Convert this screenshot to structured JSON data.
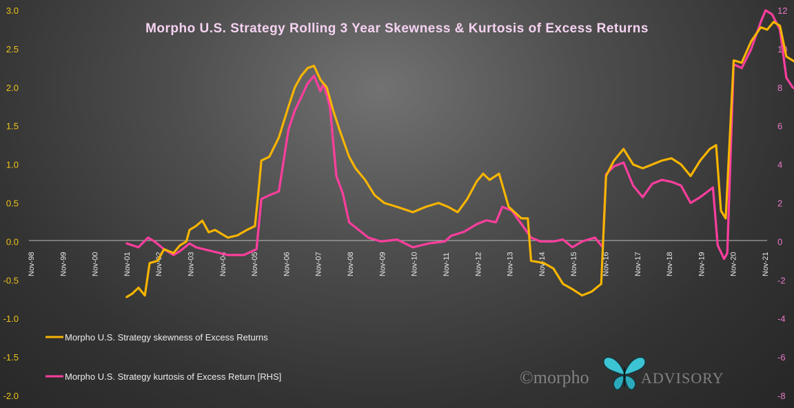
{
  "chart_data": {
    "type": "line",
    "title": "Morpho  U.S. Strategy  Rolling  3 Year  Skewness  &  Kurtosis  of  Excess  Returns",
    "x_ticks": [
      "Nov-98",
      "Nov-99",
      "Nov-00",
      "Nov-01",
      "Nov-02",
      "Nov-03",
      "Nov-04",
      "Nov-05",
      "Nov-06",
      "Nov-07",
      "Nov-08",
      "Nov-09",
      "Nov-10",
      "Nov-11",
      "Nov-12",
      "Nov-13",
      "Nov-14",
      "Nov-15",
      "Nov-16",
      "Nov-17",
      "Nov-18",
      "Nov-19",
      "Nov-20",
      "Nov-21"
    ],
    "x_range": [
      "Nov-98",
      "Nov-21"
    ],
    "y_left": {
      "range": [
        -2.0,
        3.0
      ],
      "ticks": [
        "-2.0",
        "-1.5",
        "-1.0",
        "-0.5",
        "0.0",
        "0.5",
        "1.0",
        "1.5",
        "2.0",
        "2.5",
        "3.0"
      ],
      "color": "#f0c419"
    },
    "y_right": {
      "range": [
        -8,
        12
      ],
      "ticks": [
        "-8",
        "-6",
        "-4",
        "-2",
        "0",
        "2",
        "4",
        "6",
        "8",
        "10",
        "12"
      ],
      "color": "#e879c8"
    },
    "grid": false,
    "legend_position": "bottom-left",
    "series": [
      {
        "name": "Morpho U.S. Strategy skewness of Excess Returns",
        "axis": "left",
        "color": "#f7b500",
        "points": [
          [
            2001.83,
            -0.72
          ],
          [
            2002.0,
            -0.68
          ],
          [
            2002.2,
            -0.6
          ],
          [
            2002.4,
            -0.7
          ],
          [
            2002.55,
            -0.28
          ],
          [
            2002.8,
            -0.25
          ],
          [
            2003.0,
            -0.1
          ],
          [
            2003.3,
            -0.15
          ],
          [
            2003.5,
            -0.05
          ],
          [
            2003.7,
            0.0
          ],
          [
            2003.8,
            0.15
          ],
          [
            2004.0,
            0.2
          ],
          [
            2004.2,
            0.27
          ],
          [
            2004.4,
            0.12
          ],
          [
            2004.6,
            0.15
          ],
          [
            2004.8,
            0.1
          ],
          [
            2005.0,
            0.05
          ],
          [
            2005.3,
            0.08
          ],
          [
            2005.6,
            0.15
          ],
          [
            2005.85,
            0.2
          ],
          [
            2005.95,
            0.6
          ],
          [
            2006.05,
            1.05
          ],
          [
            2006.3,
            1.1
          ],
          [
            2006.6,
            1.35
          ],
          [
            2006.9,
            1.75
          ],
          [
            2007.1,
            2.0
          ],
          [
            2007.3,
            2.15
          ],
          [
            2007.5,
            2.25
          ],
          [
            2007.7,
            2.28
          ],
          [
            2007.9,
            2.1
          ],
          [
            2008.1,
            2.0
          ],
          [
            2008.3,
            1.7
          ],
          [
            2008.5,
            1.45
          ],
          [
            2008.8,
            1.1
          ],
          [
            2009.0,
            0.95
          ],
          [
            2009.3,
            0.8
          ],
          [
            2009.6,
            0.6
          ],
          [
            2009.9,
            0.5
          ],
          [
            2010.3,
            0.45
          ],
          [
            2010.8,
            0.38
          ],
          [
            2011.2,
            0.45
          ],
          [
            2011.6,
            0.5
          ],
          [
            2011.9,
            0.45
          ],
          [
            2012.2,
            0.38
          ],
          [
            2012.5,
            0.55
          ],
          [
            2012.8,
            0.78
          ],
          [
            2013.0,
            0.88
          ],
          [
            2013.2,
            0.8
          ],
          [
            2013.5,
            0.88
          ],
          [
            2013.8,
            0.45
          ],
          [
            2014.2,
            0.3
          ],
          [
            2014.4,
            0.3
          ],
          [
            2014.5,
            -0.25
          ],
          [
            2014.9,
            -0.28
          ],
          [
            2015.2,
            -0.35
          ],
          [
            2015.5,
            -0.55
          ],
          [
            2015.8,
            -0.62
          ],
          [
            2016.1,
            -0.7
          ],
          [
            2016.4,
            -0.65
          ],
          [
            2016.7,
            -0.55
          ],
          [
            2016.85,
            0.85
          ],
          [
            2017.1,
            1.05
          ],
          [
            2017.4,
            1.2
          ],
          [
            2017.7,
            1.0
          ],
          [
            2018.0,
            0.95
          ],
          [
            2018.3,
            1.0
          ],
          [
            2018.6,
            1.05
          ],
          [
            2018.9,
            1.08
          ],
          [
            2019.2,
            1.0
          ],
          [
            2019.5,
            0.85
          ],
          [
            2019.8,
            1.05
          ],
          [
            2020.1,
            1.2
          ],
          [
            2020.3,
            1.25
          ],
          [
            2020.45,
            0.4
          ],
          [
            2020.6,
            0.3
          ],
          [
            2020.85,
            2.35
          ],
          [
            2021.1,
            2.32
          ],
          [
            2021.4,
            2.6
          ],
          [
            2021.7,
            2.78
          ],
          [
            2021.9,
            2.75
          ],
          [
            2022.1,
            2.85
          ],
          [
            2022.3,
            2.8
          ],
          [
            2022.5,
            2.4
          ],
          [
            2022.7,
            2.35
          ],
          [
            2022.9,
            2.3
          ],
          [
            2023.0,
            2.2
          ]
        ]
      },
      {
        "name": "Morpho U.S. Strategy kurtosis of Excess Return [RHS]",
        "axis": "right",
        "color": "#ff3e9e",
        "points": [
          [
            2001.83,
            -0.1
          ],
          [
            2002.2,
            -0.3
          ],
          [
            2002.5,
            0.2
          ],
          [
            2002.7,
            0.0
          ],
          [
            2003.0,
            -0.4
          ],
          [
            2003.3,
            -0.7
          ],
          [
            2003.5,
            -0.5
          ],
          [
            2003.8,
            -0.1
          ],
          [
            2004.0,
            -0.3
          ],
          [
            2004.5,
            -0.5
          ],
          [
            2005.0,
            -0.7
          ],
          [
            2005.5,
            -0.7
          ],
          [
            2005.9,
            -0.4
          ],
          [
            2006.05,
            2.2
          ],
          [
            2006.3,
            2.4
          ],
          [
            2006.6,
            2.6
          ],
          [
            2006.9,
            5.8
          ],
          [
            2007.1,
            6.8
          ],
          [
            2007.3,
            7.5
          ],
          [
            2007.5,
            8.2
          ],
          [
            2007.7,
            8.6
          ],
          [
            2007.9,
            7.8
          ],
          [
            2008.0,
            8.2
          ],
          [
            2008.2,
            7.0
          ],
          [
            2008.4,
            3.4
          ],
          [
            2008.6,
            2.5
          ],
          [
            2008.8,
            1.0
          ],
          [
            2009.1,
            0.6
          ],
          [
            2009.4,
            0.2
          ],
          [
            2009.8,
            0.0
          ],
          [
            2010.3,
            0.1
          ],
          [
            2010.8,
            -0.3
          ],
          [
            2011.3,
            -0.1
          ],
          [
            2011.8,
            0.0
          ],
          [
            2012.0,
            0.3
          ],
          [
            2012.4,
            0.5
          ],
          [
            2012.8,
            0.9
          ],
          [
            2013.1,
            1.1
          ],
          [
            2013.4,
            1.0
          ],
          [
            2013.6,
            1.8
          ],
          [
            2013.9,
            1.6
          ],
          [
            2014.2,
            0.9
          ],
          [
            2014.5,
            0.2
          ],
          [
            2014.8,
            0.0
          ],
          [
            2015.2,
            0.0
          ],
          [
            2015.5,
            0.1
          ],
          [
            2015.8,
            -0.3
          ],
          [
            2016.1,
            0.0
          ],
          [
            2016.5,
            0.2
          ],
          [
            2016.75,
            -0.3
          ],
          [
            2016.85,
            3.5
          ],
          [
            2017.1,
            3.9
          ],
          [
            2017.4,
            4.1
          ],
          [
            2017.7,
            2.9
          ],
          [
            2018.0,
            2.3
          ],
          [
            2018.3,
            3.0
          ],
          [
            2018.6,
            3.2
          ],
          [
            2018.9,
            3.1
          ],
          [
            2019.2,
            2.9
          ],
          [
            2019.5,
            2.0
          ],
          [
            2019.8,
            2.3
          ],
          [
            2020.2,
            2.8
          ],
          [
            2020.35,
            -0.2
          ],
          [
            2020.55,
            -0.9
          ],
          [
            2020.65,
            -0.6
          ],
          [
            2020.85,
            9.2
          ],
          [
            2021.1,
            9.0
          ],
          [
            2021.4,
            10.0
          ],
          [
            2021.7,
            11.4
          ],
          [
            2021.85,
            12.0
          ],
          [
            2022.05,
            11.8
          ],
          [
            2022.3,
            11.0
          ],
          [
            2022.5,
            8.5
          ],
          [
            2022.7,
            8.0
          ],
          [
            2022.9,
            7.8
          ],
          [
            2023.0,
            7.3
          ]
        ]
      }
    ]
  },
  "watermark": {
    "text": "©morpho",
    "text_tail": "ADVISORY",
    "icon": "butterfly-icon"
  },
  "colors": {
    "skew": "#f7b500",
    "kurt": "#ff3e9e",
    "left_axis": "#f0c419",
    "right_axis": "#e879c8",
    "title": "#f6d3f2"
  }
}
